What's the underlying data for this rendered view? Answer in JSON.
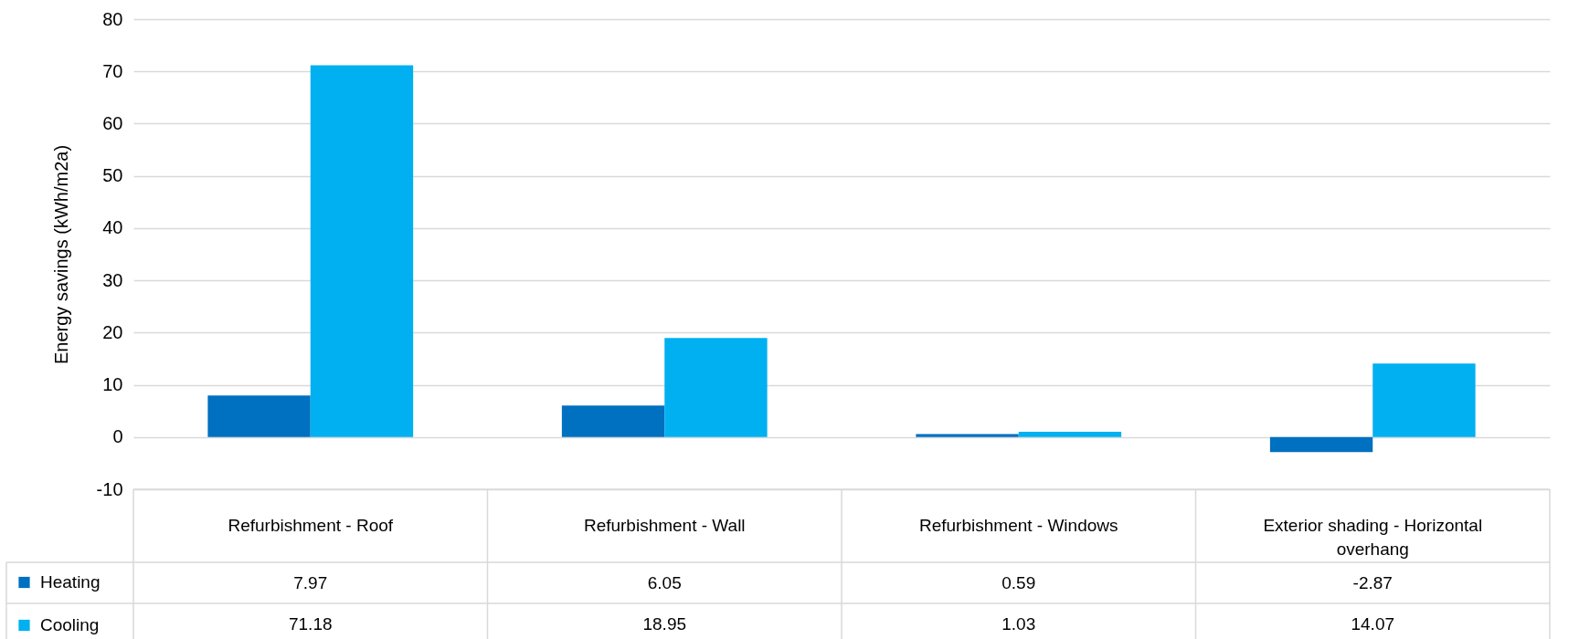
{
  "chart_data": {
    "type": "bar",
    "ylabel": "Energy savings (kWh/m2a)",
    "categories": [
      "Refurbishment - Roof",
      "Refurbishment - Wall",
      "Refurbishment - Windows",
      "Exterior shading - Horizontal overhang"
    ],
    "series": [
      {
        "name": "Heating",
        "color": "#0070c0",
        "values": [
          7.97,
          6.05,
          0.59,
          -2.87
        ]
      },
      {
        "name": "Cooling",
        "color": "#00b0f0",
        "values": [
          71.18,
          18.95,
          1.03,
          14.07
        ]
      }
    ],
    "ylim": [
      -10,
      80
    ],
    "yticks": [
      -10,
      0,
      10,
      20,
      30,
      40,
      50,
      60,
      70,
      80
    ],
    "grid": "y",
    "legend": "bottom left",
    "data_labels": true
  }
}
